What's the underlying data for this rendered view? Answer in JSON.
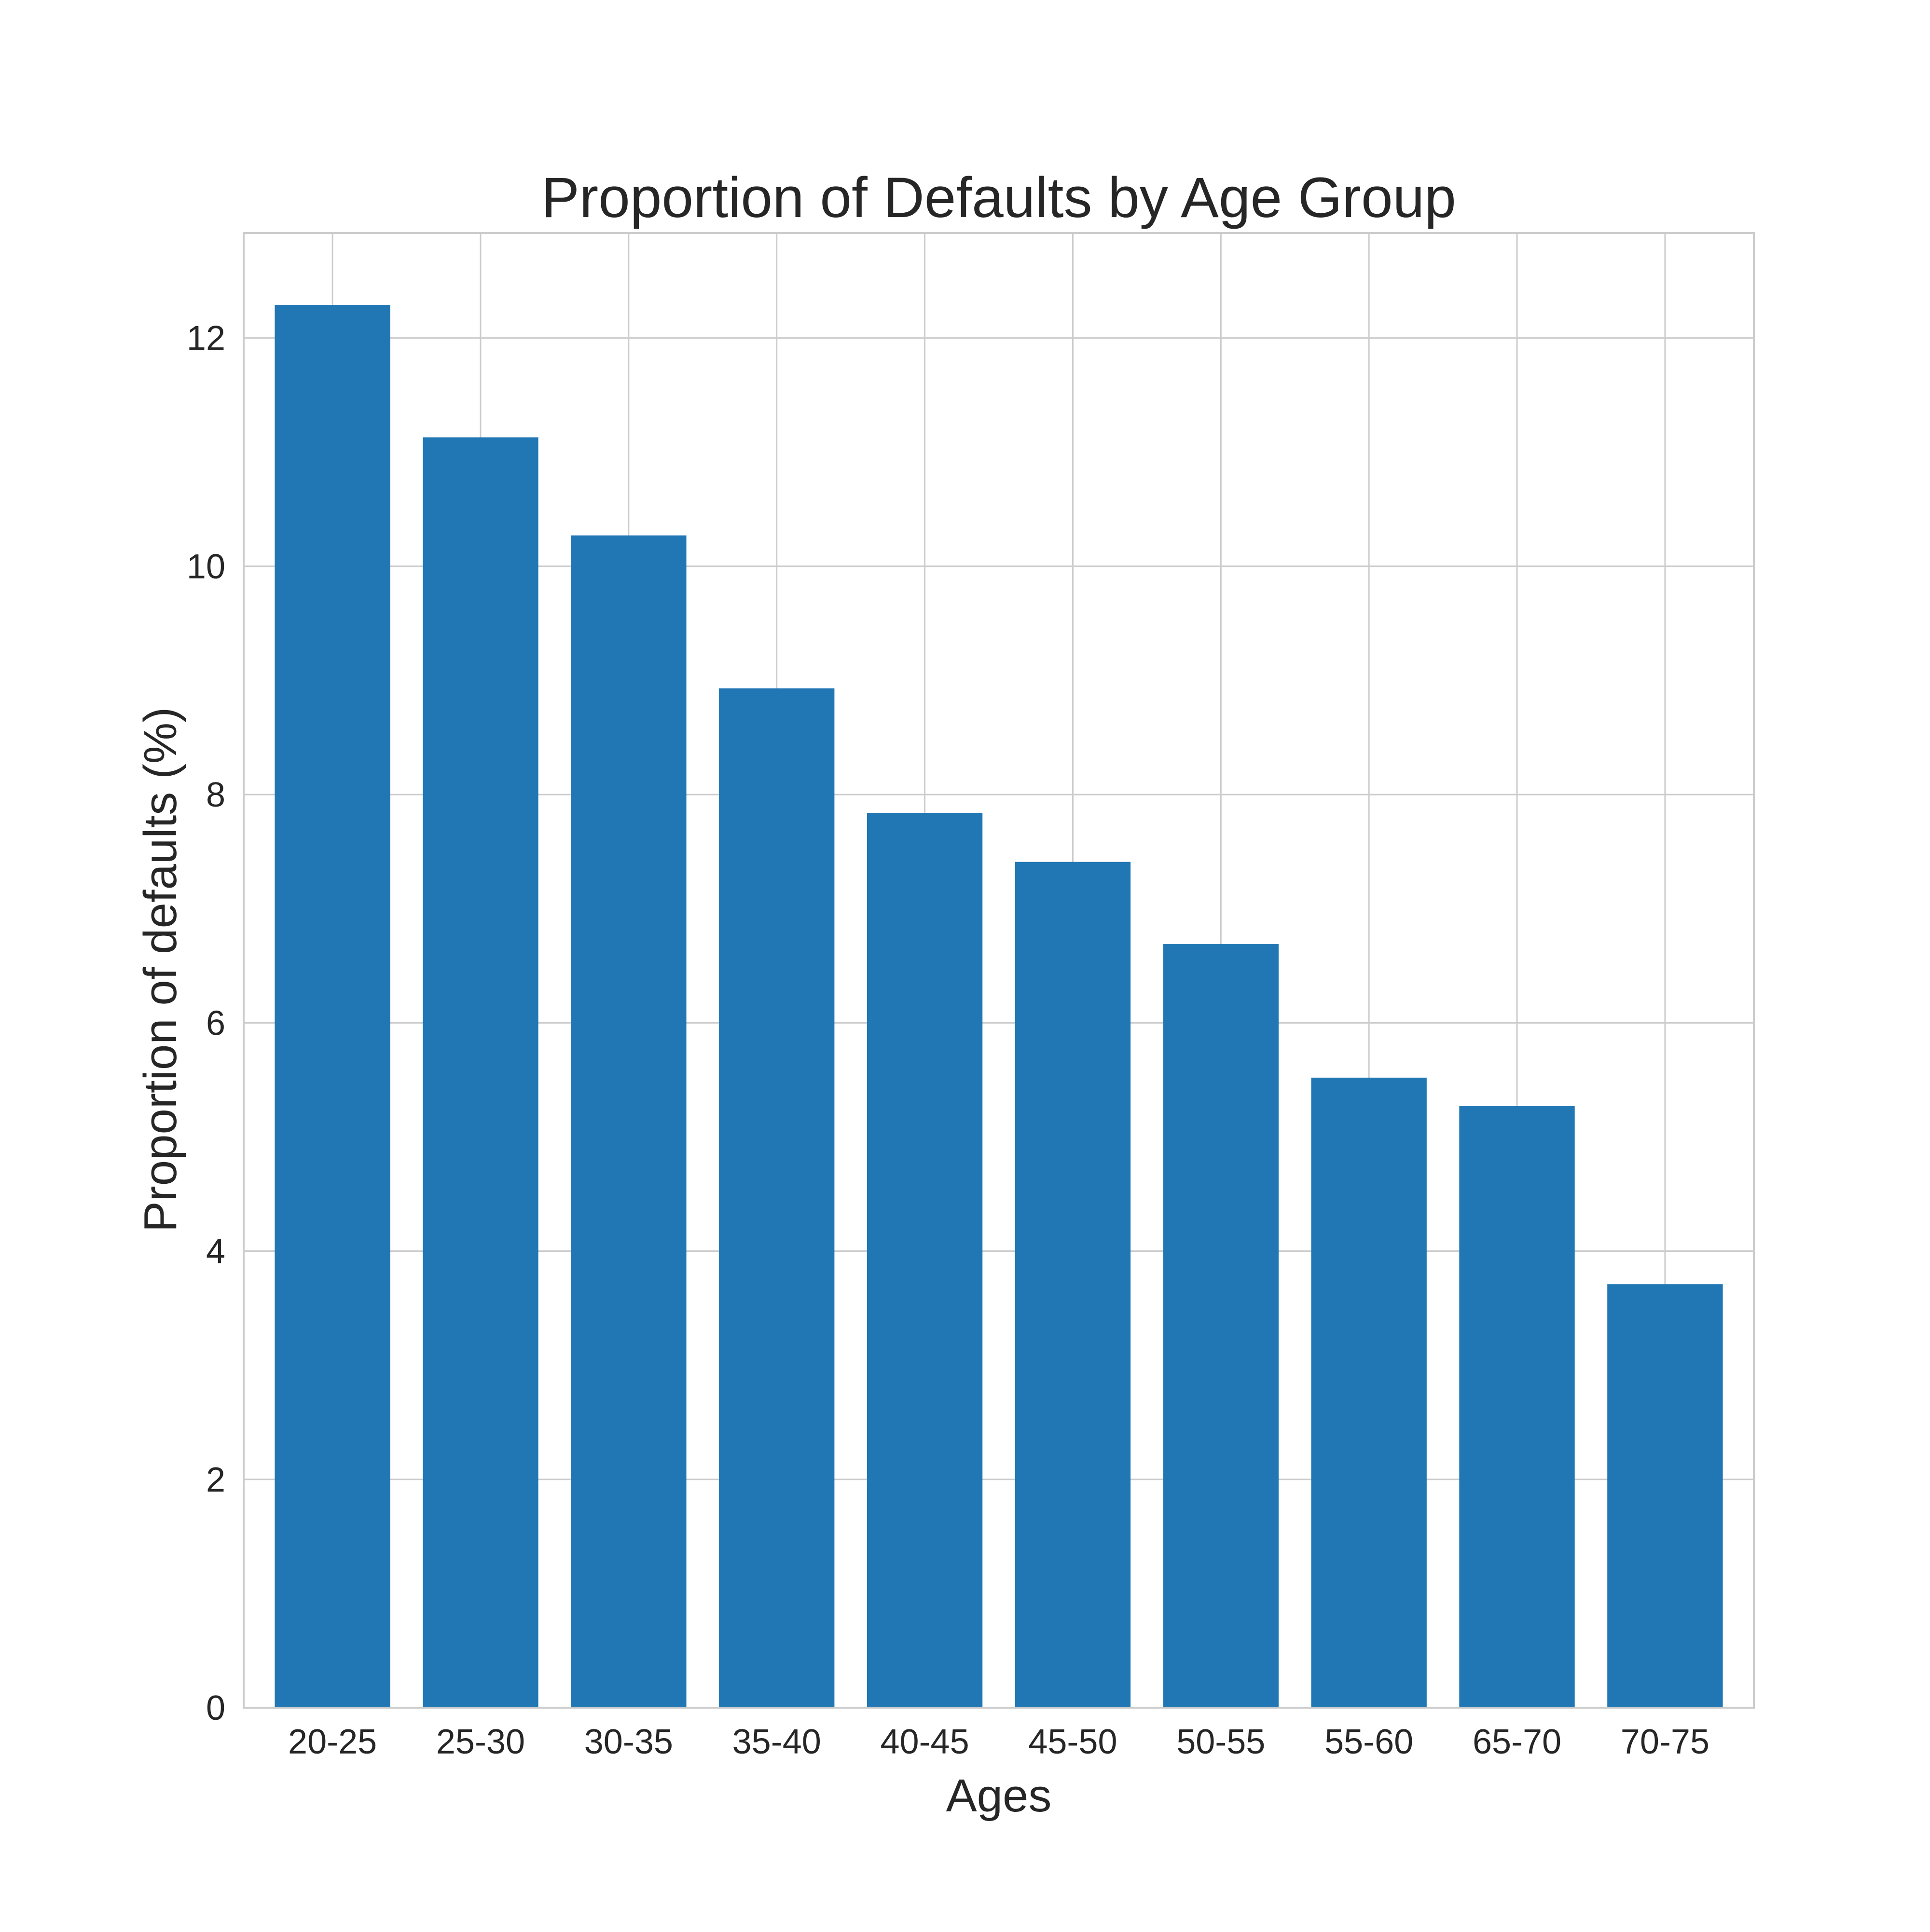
{
  "chart_data": {
    "type": "bar",
    "title": "Proportion of Defaults by Age Group",
    "xlabel": "Ages",
    "ylabel": "Proportion of defaults (%)",
    "categories": [
      "20-25",
      "25-30",
      "30-35",
      "35-40",
      "40-45",
      "45-50",
      "50-55",
      "55-60",
      "65-70",
      "70-75"
    ],
    "values": [
      12.29,
      11.13,
      10.27,
      8.93,
      7.84,
      7.41,
      6.69,
      5.52,
      5.27,
      3.71
    ],
    "ylim": [
      0,
      12.92
    ],
    "yticks": [
      "0",
      "2",
      "4",
      "6",
      "8",
      "10",
      "12"
    ],
    "grid": true,
    "colors": {
      "bar": "#2077b4",
      "grid": "#cccccc",
      "spine": "#cccccc"
    }
  }
}
